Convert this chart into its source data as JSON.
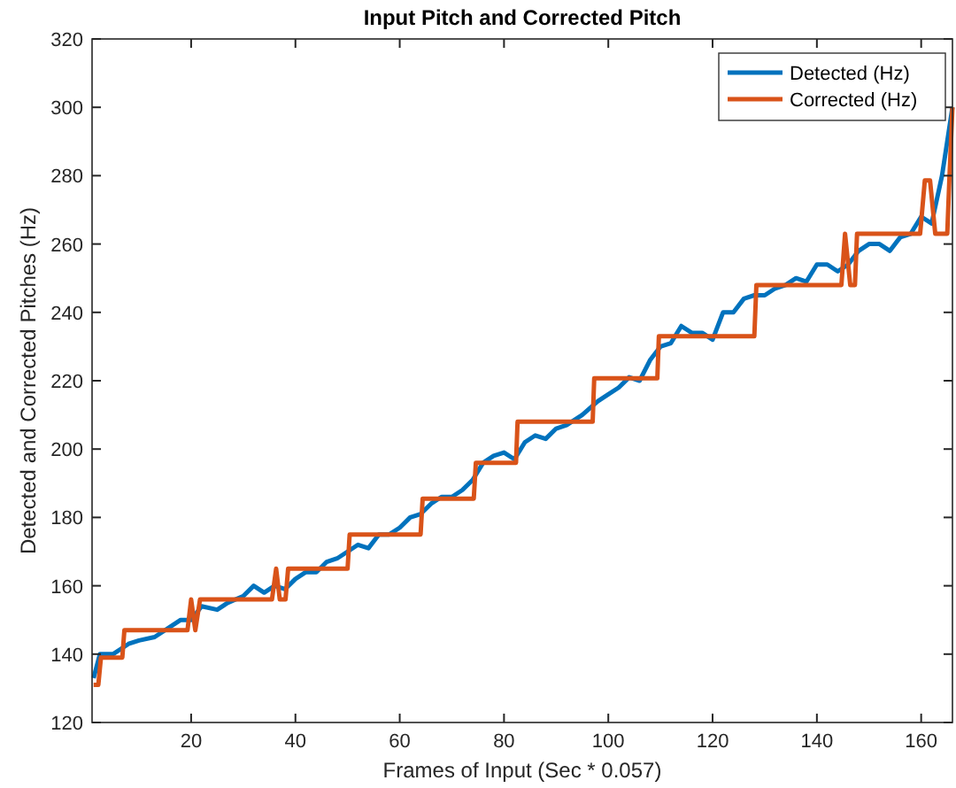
{
  "chart_data": {
    "type": "line",
    "title": "Input Pitch and Corrected Pitch",
    "xlabel": "Frames of Input (Sec * 0.057)",
    "ylabel": "Detected and Corrected Pitches (Hz)",
    "xlim": [
      1,
      166
    ],
    "ylim": [
      120,
      320
    ],
    "xticks": [
      20,
      40,
      60,
      80,
      100,
      120,
      140,
      160
    ],
    "yticks": [
      120,
      140,
      160,
      180,
      200,
      220,
      240,
      260,
      280,
      300,
      320
    ],
    "grid": false,
    "legend": "top right",
    "line_style": "solid",
    "marker": "none",
    "series": [
      {
        "name": "Detected (Hz)",
        "color": "#0072bd",
        "x": [
          1.3,
          2.5,
          5,
          8,
          10,
          13,
          16,
          18,
          20,
          22,
          25,
          27,
          30,
          32,
          34,
          36,
          38,
          40,
          42,
          44,
          46,
          48,
          50,
          52,
          54,
          56,
          58,
          60,
          62,
          64,
          66,
          68,
          70,
          72,
          74,
          76,
          78,
          80,
          82,
          84,
          86,
          88,
          90,
          92,
          95,
          98,
          100,
          102,
          104,
          106,
          108,
          110,
          112,
          114,
          116,
          118,
          120,
          122,
          124,
          126,
          128,
          130,
          132,
          134,
          136,
          138,
          140,
          142,
          144,
          146,
          148,
          150,
          152,
          154,
          156,
          158,
          160,
          162,
          164,
          166
        ],
        "values": [
          133,
          140,
          140,
          143,
          144,
          145,
          148,
          150,
          150,
          154,
          153,
          155,
          157,
          160,
          158,
          160,
          159,
          162,
          164,
          164,
          167,
          168,
          170,
          172,
          171,
          175,
          175,
          177,
          180,
          181,
          184,
          186,
          186,
          188,
          191,
          196,
          198,
          199,
          197,
          202,
          204,
          203,
          206,
          207,
          210,
          214,
          216,
          218,
          221,
          220,
          226,
          230,
          231,
          236,
          234,
          234,
          232,
          240,
          240,
          244,
          245,
          245,
          247,
          248,
          250,
          249,
          254,
          254,
          252,
          254,
          258,
          260,
          260,
          258,
          262,
          263,
          268,
          266,
          280,
          300
        ]
      },
      {
        "name": "Corrected (Hz)",
        "color": "#d95319",
        "x": [
          1.3,
          2.2,
          2.7,
          6.8,
          7.2,
          19.3,
          20,
          20.8,
          21.7,
          35.5,
          36.3,
          37,
          38.1,
          38.6,
          50,
          50.4,
          64,
          64.4,
          74.2,
          74.6,
          82.3,
          82.6,
          97,
          97.3,
          109.4,
          109.7,
          128,
          128.4,
          144.7,
          145.4,
          146.4,
          147.3,
          147.7,
          159.8,
          160.7,
          161.7,
          162.7,
          165,
          165.4,
          166
        ],
        "values": [
          131,
          131,
          139,
          139,
          147,
          147,
          156,
          147,
          156,
          156,
          165,
          156,
          156,
          165,
          165,
          175,
          175,
          185.5,
          185.5,
          196,
          196,
          208,
          208,
          220.7,
          220.7,
          233,
          233,
          248,
          248,
          263,
          248,
          248,
          263,
          263,
          278.6,
          278.6,
          263,
          263,
          278.6,
          300
        ]
      }
    ]
  }
}
